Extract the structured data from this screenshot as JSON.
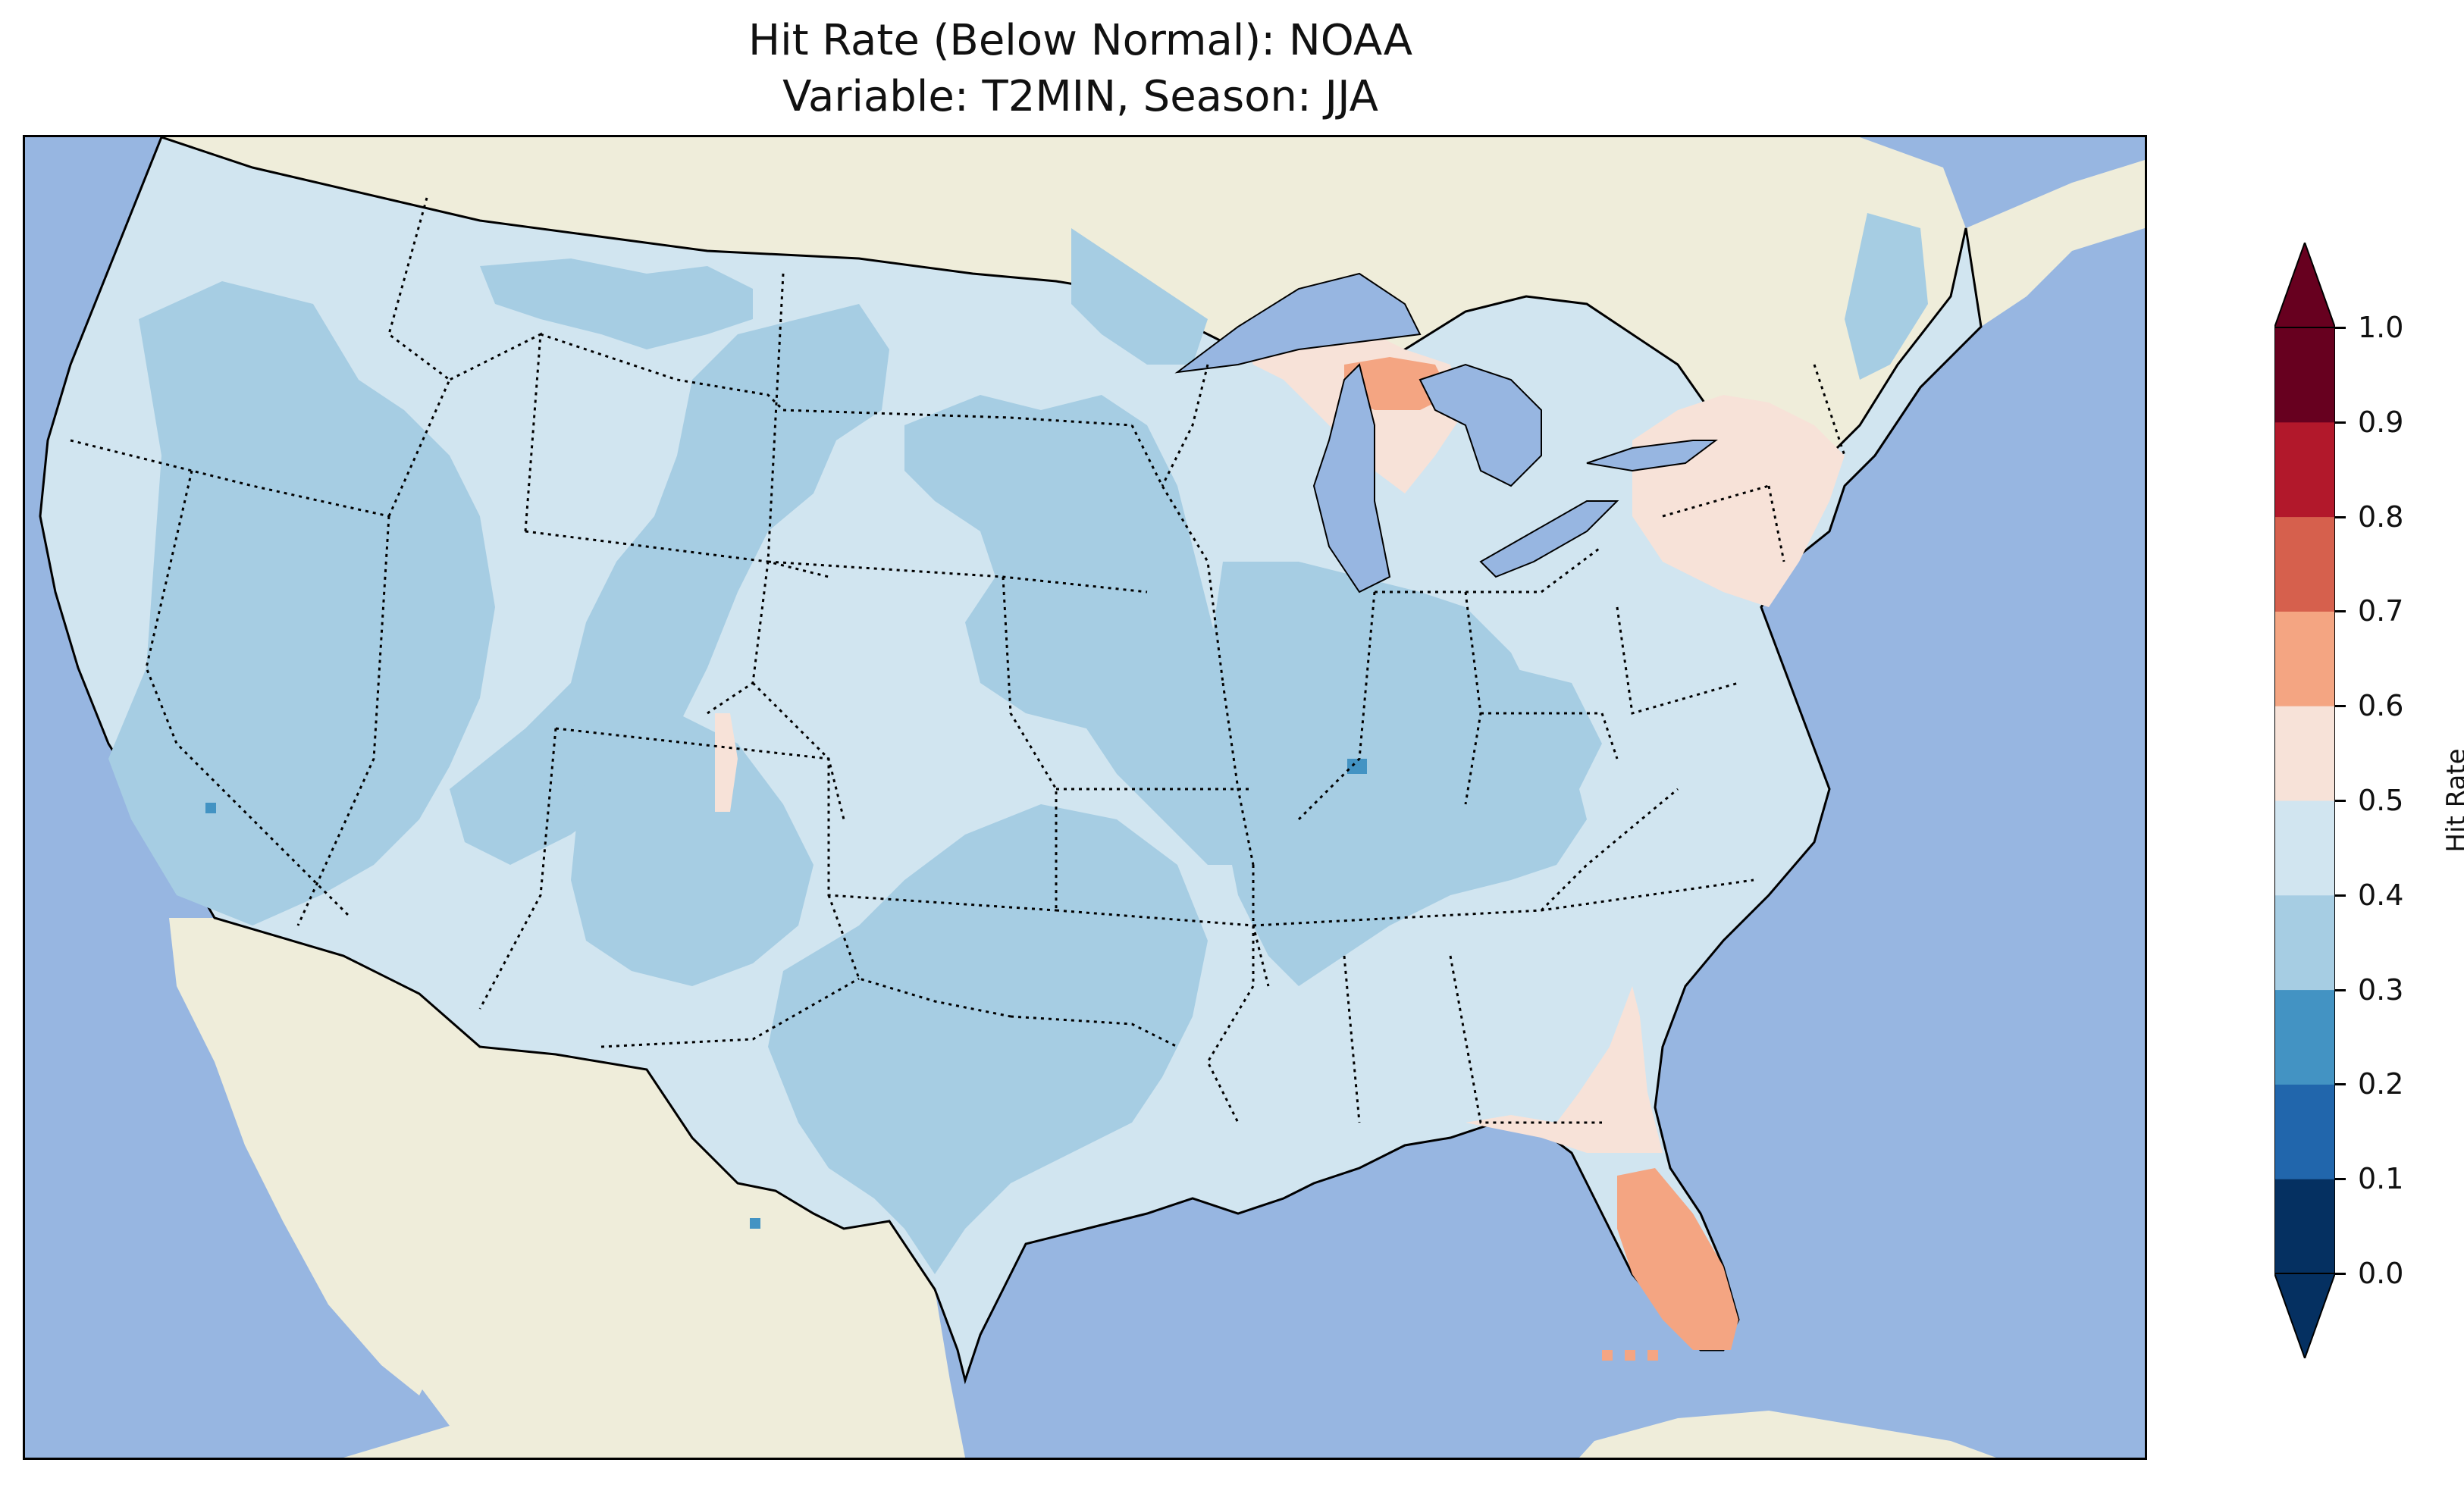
{
  "title": {
    "line1": "Hit Rate (Below Normal): NOAA",
    "line2": "Variable: T2MIN, Season: JJA"
  },
  "map": {
    "ocean_color": "#97b6e1",
    "land_color": "#efedda",
    "lake_color": "#97b6e1",
    "dominant_hit_rate_range": [
      0.3,
      0.5
    ],
    "features": [
      {
        "region": "Peninsular Florida",
        "hit_rate_range": [
          0.6,
          0.7
        ]
      },
      {
        "region": "Upper Michigan / northern Lower Michigan",
        "hit_rate_range": [
          0.5,
          0.7
        ]
      },
      {
        "region": "New England / New York",
        "hit_rate_range": [
          0.5,
          0.6
        ]
      },
      {
        "region": "Gulf coast Florida panhandle and Georgia coast",
        "hit_rate_range": [
          0.5,
          0.6
        ]
      },
      {
        "region": "Western Kentucky",
        "hit_rate_range": [
          0.2,
          0.3
        ]
      }
    ]
  },
  "colorbar": {
    "label": "Hit Rate",
    "ticks": [
      "0.0",
      "0.1",
      "0.2",
      "0.3",
      "0.4",
      "0.5",
      "0.6",
      "0.7",
      "0.8",
      "0.9",
      "1.0"
    ],
    "extend": "both",
    "under_color": "#053061",
    "over_color": "#67001f",
    "colors": [
      "#053061",
      "#2166ac",
      "#4393c3",
      "#a6cde3",
      "#d1e5f0",
      "#f7e2d8",
      "#f4a582",
      "#d6604d",
      "#b2182b",
      "#67001f"
    ]
  }
}
